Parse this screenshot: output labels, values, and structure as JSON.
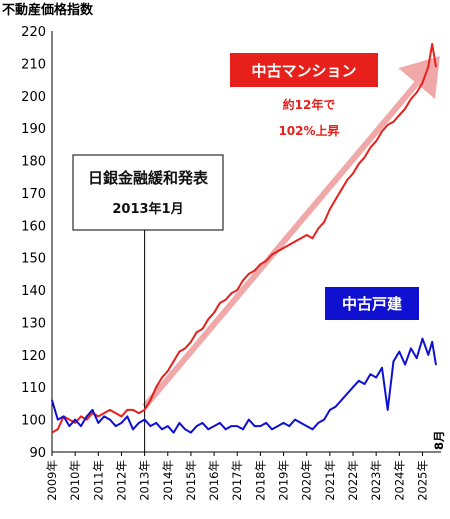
{
  "chart_data": {
    "type": "line",
    "title": "不動産価格指数",
    "ylim": [
      90,
      220
    ],
    "yticks": [
      90,
      100,
      110,
      120,
      130,
      140,
      150,
      160,
      170,
      180,
      190,
      200,
      210,
      220
    ],
    "xticks": [
      "2009年",
      "2010年",
      "2011年",
      "2012年",
      "2013年",
      "2014年",
      "2015年",
      "2016年",
      "2017年",
      "2018年",
      "2019年",
      "2020年",
      "2021年",
      "2022年",
      "2023年",
      "2024年",
      "2025年"
    ],
    "x_end_label": "8月",
    "grid": false,
    "series": [
      {
        "name": "中古マンション",
        "color": "#e8201c",
        "x": [
          2009.0,
          2009.25,
          2009.5,
          2009.75,
          2010.0,
          2010.25,
          2010.5,
          2010.75,
          2011.0,
          2011.25,
          2011.5,
          2011.75,
          2012.0,
          2012.25,
          2012.5,
          2012.75,
          2013.0,
          2013.25,
          2013.5,
          2013.75,
          2014.0,
          2014.25,
          2014.5,
          2014.75,
          2015.0,
          2015.25,
          2015.5,
          2015.75,
          2016.0,
          2016.25,
          2016.5,
          2016.75,
          2017.0,
          2017.25,
          2017.5,
          2017.75,
          2018.0,
          2018.25,
          2018.5,
          2018.75,
          2019.0,
          2019.25,
          2019.5,
          2019.75,
          2020.0,
          2020.25,
          2020.5,
          2020.75,
          2021.0,
          2021.25,
          2021.5,
          2021.75,
          2022.0,
          2022.25,
          2022.5,
          2022.75,
          2023.0,
          2023.25,
          2023.5,
          2023.75,
          2024.0,
          2024.25,
          2024.5,
          2024.75,
          2025.0,
          2025.25,
          2025.42,
          2025.58
        ],
        "values": [
          96,
          97,
          101,
          100,
          99,
          101,
          100,
          102,
          101,
          102,
          103,
          102,
          101,
          103,
          103,
          102,
          103,
          106,
          110,
          113,
          115,
          118,
          121,
          122,
          124,
          127,
          128,
          131,
          133,
          136,
          137,
          139,
          140,
          143,
          145,
          146,
          148,
          149,
          151,
          152,
          153,
          154,
          155,
          156,
          157,
          156,
          159,
          161,
          165,
          168,
          171,
          174,
          176,
          179,
          181,
          184,
          186,
          189,
          191,
          192,
          194,
          196,
          199,
          201,
          204,
          209,
          216,
          209
        ]
      },
      {
        "name": "中古戸建",
        "color": "#1010d0",
        "x": [
          2009.0,
          2009.25,
          2009.5,
          2009.75,
          2010.0,
          2010.25,
          2010.5,
          2010.75,
          2011.0,
          2011.25,
          2011.5,
          2011.75,
          2012.0,
          2012.25,
          2012.5,
          2012.75,
          2013.0,
          2013.25,
          2013.5,
          2013.75,
          2014.0,
          2014.25,
          2014.5,
          2014.75,
          2015.0,
          2015.25,
          2015.5,
          2015.75,
          2016.0,
          2016.25,
          2016.5,
          2016.75,
          2017.0,
          2017.25,
          2017.5,
          2017.75,
          2018.0,
          2018.25,
          2018.5,
          2018.75,
          2019.0,
          2019.25,
          2019.5,
          2019.75,
          2020.0,
          2020.25,
          2020.5,
          2020.75,
          2021.0,
          2021.25,
          2021.5,
          2021.75,
          2022.0,
          2022.25,
          2022.5,
          2022.75,
          2023.0,
          2023.25,
          2023.5,
          2023.75,
          2024.0,
          2024.25,
          2024.5,
          2024.75,
          2025.0,
          2025.25,
          2025.42,
          2025.58
        ],
        "values": [
          106,
          100,
          101,
          98,
          100,
          98,
          101,
          103,
          99,
          101,
          100,
          98,
          99,
          101,
          97,
          99,
          100,
          98,
          99,
          97,
          98,
          96,
          99,
          97,
          96,
          98,
          99,
          97,
          98,
          99,
          97,
          98,
          98,
          97,
          100,
          98,
          98,
          99,
          97,
          98,
          99,
          98,
          100,
          99,
          98,
          97,
          99,
          100,
          103,
          104,
          106,
          108,
          110,
          112,
          111,
          114,
          113,
          116,
          103,
          118,
          121,
          117,
          122,
          119,
          125,
          120,
          124,
          117
        ]
      }
    ],
    "annotations": {
      "event_line1": "日銀金融緩和発表",
      "event_line2": "2013年1月",
      "event_x": 2013.0,
      "mansion_note_line1": "約12年で",
      "mansion_note_line2": "102%上昇"
    }
  }
}
